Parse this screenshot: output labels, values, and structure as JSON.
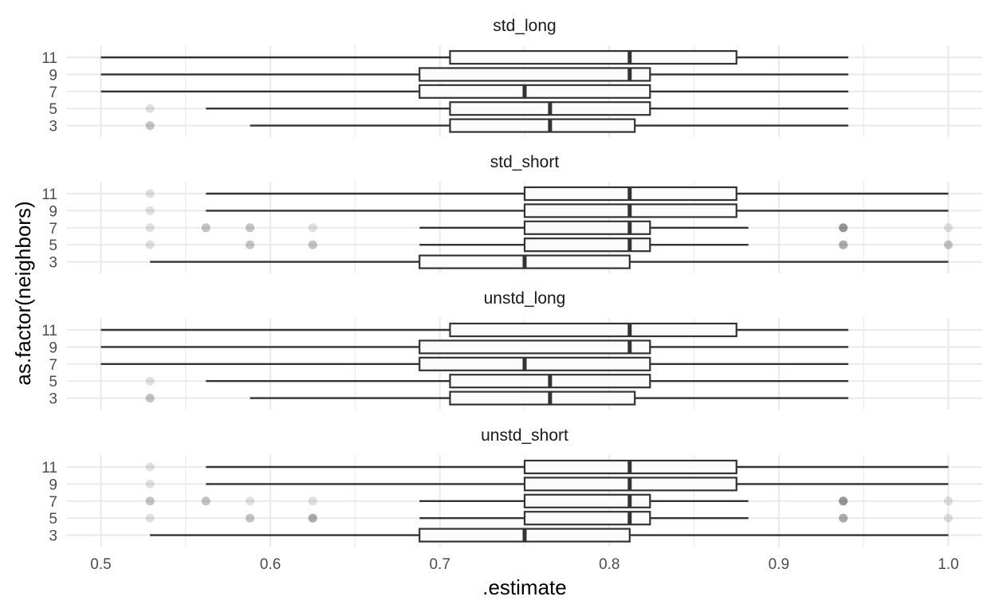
{
  "chart_data": {
    "type": "boxplot",
    "facet_layout": "vertical",
    "xlabel": ".estimate",
    "ylabel": "as.factor(neighbors)",
    "xlim": [
      0.48,
      1.02
    ],
    "x_ticks": [
      0.5,
      0.6,
      0.7,
      0.8,
      0.9,
      1.0
    ],
    "x_tick_labels": [
      "0.5",
      "0.6",
      "0.7",
      "0.8",
      "0.9",
      "1.0"
    ],
    "categories": [
      "3",
      "5",
      "7",
      "9",
      "11"
    ],
    "grid": true,
    "colors": {
      "box_line": "#333333",
      "box_fill": "#fbfbfb",
      "grid": "#ebebeb",
      "outlier": "#000000"
    },
    "facets": [
      {
        "name": "std_long",
        "boxes": [
          {
            "category": "11",
            "whisker_low": 0.5,
            "q1": 0.706,
            "median": 0.812,
            "q3": 0.875,
            "whisker_high": 0.941,
            "outliers": []
          },
          {
            "category": "9",
            "whisker_low": 0.5,
            "q1": 0.688,
            "median": 0.812,
            "q3": 0.824,
            "whisker_high": 0.941,
            "outliers": []
          },
          {
            "category": "7",
            "whisker_low": 0.5,
            "q1": 0.688,
            "median": 0.75,
            "q3": 0.824,
            "whisker_high": 0.941,
            "outliers": []
          },
          {
            "category": "5",
            "whisker_low": 0.562,
            "q1": 0.706,
            "median": 0.765,
            "q3": 0.824,
            "whisker_high": 0.941,
            "outliers": [
              0.529
            ]
          },
          {
            "category": "3",
            "whisker_low": 0.588,
            "q1": 0.706,
            "median": 0.765,
            "q3": 0.815,
            "whisker_high": 0.941,
            "outliers": [
              0.529,
              0.529
            ]
          }
        ]
      },
      {
        "name": "std_short",
        "boxes": [
          {
            "category": "11",
            "whisker_low": 0.562,
            "q1": 0.75,
            "median": 0.812,
            "q3": 0.875,
            "whisker_high": 1.0,
            "outliers": [
              0.529
            ]
          },
          {
            "category": "9",
            "whisker_low": 0.562,
            "q1": 0.75,
            "median": 0.812,
            "q3": 0.875,
            "whisker_high": 1.0,
            "outliers": [
              0.529
            ]
          },
          {
            "category": "7",
            "whisker_low": 0.688,
            "q1": 0.75,
            "median": 0.812,
            "q3": 0.824,
            "whisker_high": 0.882,
            "outliers": [
              0.529,
              0.562,
              0.562,
              0.588,
              0.588,
              0.625,
              0.938,
              0.938,
              0.938,
              0.938,
              1.0
            ]
          },
          {
            "category": "5",
            "whisker_low": 0.688,
            "q1": 0.75,
            "median": 0.812,
            "q3": 0.824,
            "whisker_high": 0.882,
            "outliers": [
              0.529,
              0.588,
              0.588,
              0.625,
              0.625,
              0.938,
              0.938,
              0.938,
              1.0,
              1.0
            ]
          },
          {
            "category": "3",
            "whisker_low": 0.529,
            "q1": 0.688,
            "median": 0.75,
            "q3": 0.812,
            "whisker_high": 1.0,
            "outliers": []
          }
        ]
      },
      {
        "name": "unstd_long",
        "boxes": [
          {
            "category": "11",
            "whisker_low": 0.5,
            "q1": 0.706,
            "median": 0.812,
            "q3": 0.875,
            "whisker_high": 0.941,
            "outliers": []
          },
          {
            "category": "9",
            "whisker_low": 0.5,
            "q1": 0.688,
            "median": 0.812,
            "q3": 0.824,
            "whisker_high": 0.941,
            "outliers": []
          },
          {
            "category": "7",
            "whisker_low": 0.5,
            "q1": 0.688,
            "median": 0.75,
            "q3": 0.824,
            "whisker_high": 0.941,
            "outliers": []
          },
          {
            "category": "5",
            "whisker_low": 0.562,
            "q1": 0.706,
            "median": 0.765,
            "q3": 0.824,
            "whisker_high": 0.941,
            "outliers": [
              0.529
            ]
          },
          {
            "category": "3",
            "whisker_low": 0.588,
            "q1": 0.706,
            "median": 0.765,
            "q3": 0.815,
            "whisker_high": 0.941,
            "outliers": [
              0.529,
              0.529
            ]
          }
        ]
      },
      {
        "name": "unstd_short",
        "boxes": [
          {
            "category": "11",
            "whisker_low": 0.562,
            "q1": 0.75,
            "median": 0.812,
            "q3": 0.875,
            "whisker_high": 1.0,
            "outliers": [
              0.529
            ]
          },
          {
            "category": "9",
            "whisker_low": 0.562,
            "q1": 0.75,
            "median": 0.812,
            "q3": 0.875,
            "whisker_high": 1.0,
            "outliers": [
              0.529
            ]
          },
          {
            "category": "7",
            "whisker_low": 0.688,
            "q1": 0.75,
            "median": 0.812,
            "q3": 0.824,
            "whisker_high": 0.882,
            "outliers": [
              0.529,
              0.529,
              0.562,
              0.562,
              0.588,
              0.625,
              0.938,
              0.938,
              0.938,
              0.938,
              1.0
            ]
          },
          {
            "category": "5",
            "whisker_low": 0.688,
            "q1": 0.75,
            "median": 0.812,
            "q3": 0.824,
            "whisker_high": 0.882,
            "outliers": [
              0.529,
              0.588,
              0.588,
              0.625,
              0.625,
              0.625,
              0.938,
              0.938,
              0.938,
              1.0
            ]
          },
          {
            "category": "3",
            "whisker_low": 0.529,
            "q1": 0.688,
            "median": 0.75,
            "q3": 0.812,
            "whisker_high": 1.0,
            "outliers": []
          }
        ]
      }
    ]
  }
}
